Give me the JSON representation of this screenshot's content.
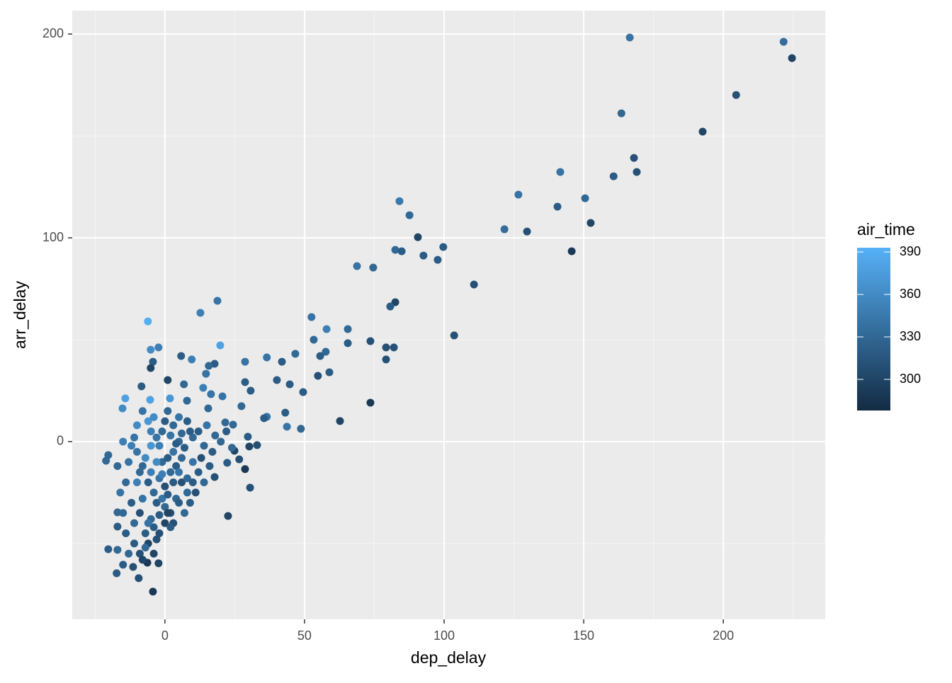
{
  "chart_data": {
    "type": "scatter",
    "x_label": "dep_delay",
    "y_label": "arr_delay",
    "x": [
      166.5,
      221.6,
      224.6,
      204.6,
      163.5,
      192.6,
      168,
      169,
      141.6,
      160.7,
      126.6,
      150.5,
      84,
      87.6,
      140.6,
      152.5,
      121.6,
      129.7,
      90.6,
      99.7,
      82.5,
      84.8,
      145.7,
      92.6,
      97.7,
      68.8,
      74.6,
      110.7,
      82.5,
      80.7,
      52.5,
      12.7,
      18.8,
      -6.1,
      57.9,
      65.5,
      103.6,
      53.3,
      73.6,
      19.8,
      -2.3,
      -5.1,
      65.5,
      79.2,
      82,
      57.6,
      46.7,
      55.6,
      5.8,
      79.2,
      36.5,
      41.9,
      9.6,
      28.7,
      -4.3,
      17.8,
      -5.1,
      15.7,
      58.9,
      54.8,
      14.7,
      40.1,
      1,
      44.7,
      28.7,
      6.8,
      -8.4,
      49.5,
      30.7,
      13.7,
      16.5,
      20.6,
      -14.2,
      -5.3,
      1.8,
      7.9,
      73.6,
      27.4,
      -15.2,
      15.5,
      36.5,
      43.1,
      35.5,
      62.7,
      21.6,
      24.4,
      43.7,
      48.7,
      29.7,
      33,
      30.2,
      24.9,
      -20.3,
      -21.1,
      26.6,
      28.7,
      22.3,
      17.8,
      30.5,
      22.6,
      -4.3,
      -17.3,
      -20.3,
      -17,
      -15,
      -9.4,
      -2.3,
      -6.3,
      -11.4,
      -17,
      -17,
      -10,
      -8,
      -6,
      -5,
      -4,
      -3,
      -2,
      -1,
      0,
      1,
      2,
      3,
      4,
      5,
      6,
      7,
      8,
      9,
      10,
      -12,
      -11,
      -9,
      -7,
      -6,
      -5,
      -4,
      -3,
      -2,
      -1,
      0,
      1,
      2,
      3,
      4,
      5,
      6,
      -13,
      -14,
      -12,
      -10,
      -8,
      -6,
      -5,
      -4,
      -3,
      -2,
      -1,
      0,
      1,
      2,
      3,
      4,
      5,
      6,
      8,
      10,
      12,
      14,
      15,
      17,
      18,
      12,
      14,
      11,
      9,
      7,
      -16,
      -15,
      -14,
      -13,
      -11,
      -9,
      -8,
      -7,
      -6,
      -10,
      -8,
      -7,
      -5,
      -3,
      -1,
      1,
      3,
      5,
      -15,
      -11,
      -9,
      -4,
      -2,
      0,
      2,
      8,
      10,
      13,
      16,
      20,
      22,
      24,
      -17
    ],
    "values": [
      198.3,
      196.2,
      188.2,
      170.1,
      161.1,
      152.1,
      139.2,
      132.3,
      132.3,
      130.2,
      121.2,
      119.4,
      118,
      111.1,
      115.3,
      107.3,
      104.2,
      103.1,
      100.3,
      95.5,
      94.1,
      93.4,
      93.4,
      91.3,
      89.2,
      86.1,
      85.4,
      77.1,
      68.4,
      66.3,
      61.1,
      63.2,
      69.1,
      59,
      55.2,
      55.2,
      52.1,
      50,
      49.3,
      47.2,
      46.2,
      45.1,
      48.3,
      46.2,
      46.2,
      44.1,
      43.1,
      42,
      42,
      40.3,
      41.3,
      39.2,
      40.3,
      39.2,
      39.2,
      38.2,
      36.1,
      37.2,
      34,
      32.3,
      33.3,
      30.2,
      30.2,
      28.1,
      29.2,
      28.1,
      27.1,
      24.3,
      25,
      26.4,
      23.3,
      22.2,
      21.2,
      20.5,
      21.2,
      20.1,
      19.1,
      17.4,
      16.3,
      16.3,
      12.2,
      14.2,
      11.5,
      10.1,
      9.4,
      8.3,
      7.3,
      6.3,
      2.4,
      -1.7,
      -2.4,
      -4.5,
      -6.6,
      -9.4,
      -8.7,
      -13.5,
      -10.4,
      -17.4,
      -22.6,
      -36.5,
      -73.6,
      -64.6,
      -52.8,
      -53.1,
      -60.4,
      -67,
      -59.7,
      -59.4,
      -61.5,
      -41.7,
      -34.7,
      -5,
      -12,
      -20,
      -15,
      -25,
      -30,
      -18,
      -10,
      -22,
      -8,
      -15,
      -5,
      -12,
      0,
      -20,
      -3,
      -18,
      5,
      -10,
      -30,
      -40,
      -35,
      -45,
      -50,
      -38,
      -42,
      -48,
      -36,
      -28,
      -32,
      -26,
      -35,
      -20,
      -28,
      -15,
      -8,
      -10,
      -20,
      -2,
      8,
      15,
      10,
      5,
      12,
      2,
      -2,
      5,
      10,
      15,
      3,
      8,
      -1,
      12,
      4,
      10,
      2,
      5,
      -2,
      8,
      -5,
      3,
      -15,
      -20,
      -25,
      -30,
      -35,
      -25,
      -35,
      -45,
      -55,
      -50,
      -55,
      -58,
      -52,
      -40,
      -20,
      -28,
      -8,
      -2,
      -10,
      -16,
      -35,
      -40,
      -30,
      0,
      2,
      -15,
      -55,
      -45,
      -40,
      -42,
      -25,
      -20,
      -8,
      -12,
      0,
      5,
      -3,
      -12
    ],
    "color_values": [
      340,
      335,
      300,
      310,
      330,
      300,
      310,
      310,
      340,
      320,
      340,
      330,
      345,
      330,
      320,
      300,
      335,
      310,
      300,
      320,
      330,
      320,
      290,
      320,
      320,
      340,
      330,
      310,
      300,
      320,
      340,
      350,
      340,
      390,
      350,
      330,
      310,
      330,
      310,
      380,
      350,
      360,
      320,
      310,
      310,
      330,
      330,
      320,
      320,
      310,
      340,
      320,
      350,
      340,
      320,
      320,
      300,
      330,
      320,
      310,
      340,
      320,
      300,
      320,
      320,
      330,
      320,
      320,
      320,
      350,
      340,
      340,
      380,
      380,
      370,
      330,
      290,
      330,
      360,
      330,
      340,
      320,
      320,
      300,
      330,
      330,
      340,
      330,
      320,
      310,
      300,
      300,
      330,
      330,
      310,
      290,
      320,
      310,
      310,
      300,
      290,
      320,
      320,
      330,
      320,
      310,
      300,
      290,
      310,
      320,
      330,
      340,
      330,
      320,
      350,
      330,
      320,
      340,
      330,
      310,
      320,
      330,
      340,
      320,
      330,
      310,
      320,
      330,
      320,
      340,
      320,
      330,
      310,
      320,
      300,
      330,
      320,
      310,
      320,
      340,
      330,
      320,
      310,
      320,
      330,
      340,
      330,
      340,
      330,
      350,
      360,
      340,
      370,
      350,
      360,
      340,
      350,
      330,
      320,
      330,
      340,
      330,
      320,
      340,
      330,
      320,
      330,
      320,
      330,
      340,
      320,
      330,
      320,
      330,
      310,
      320,
      330,
      340,
      330,
      320,
      330,
      320,
      310,
      300,
      330,
      340,
      350,
      340,
      360,
      370,
      360,
      350,
      300,
      310,
      320,
      350,
      340,
      330,
      300,
      310,
      300,
      320,
      330,
      320,
      310,
      320,
      330,
      320,
      330,
      330
    ],
    "xlim": [
      -33.2,
      236.5
    ],
    "ylim": [
      -87.2,
      211.5
    ],
    "xticks": [
      0,
      50,
      100,
      150,
      200
    ],
    "yticks": [
      0,
      100,
      200
    ],
    "grid": true,
    "colorbar": {
      "title": "air_time",
      "limits": [
        278,
        393
      ],
      "ticks": [
        300,
        330,
        360,
        390
      ],
      "low": "#132B43",
      "high": "#56B1F7"
    }
  }
}
